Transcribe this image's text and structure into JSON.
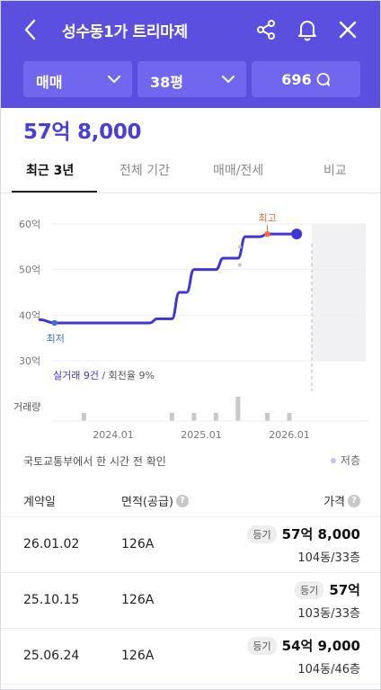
{
  "header": {
    "title": "성수동1가 트리마제",
    "filters": [
      {
        "label": "매매"
      },
      {
        "label": "38평"
      },
      {
        "label": "696"
      }
    ]
  },
  "price": "57억 8,000",
  "tabs": [
    "최근 3년",
    "전체 기간",
    "매매/전세",
    "비교"
  ],
  "chart": {
    "y_labels": [
      "60억",
      "50억",
      "40억",
      "30억"
    ],
    "x_labels": [
      "2024.01",
      "2025.01",
      "2026.01"
    ],
    "high_label": "최고",
    "low_label": "최저",
    "volume_label": "거래량",
    "stats_primary": "실거래 9건",
    "stats_secondary": " / 회전율 9%"
  },
  "chart_data": {
    "type": "line",
    "xlabel": "",
    "ylabel": "",
    "ylim": [
      30,
      60
    ],
    "unit": "억",
    "series": [
      {
        "values": [
          [
            "2023-03",
            39
          ],
          [
            "2023-05",
            38.3
          ],
          [
            "2024-01",
            38.3
          ],
          [
            "2024-06",
            38.3
          ],
          [
            "2024-07",
            39.2
          ],
          [
            "2024-09",
            39.2
          ],
          [
            "2024-10",
            45
          ],
          [
            "2024-11",
            45
          ],
          [
            "2024-12",
            50
          ],
          [
            "2025-03",
            50
          ],
          [
            "2025-04",
            52.5
          ],
          [
            "2025-06",
            52.5
          ],
          [
            "2025-07",
            57.2
          ],
          [
            "2025-09",
            57.2
          ],
          [
            "2025-10",
            57.8
          ],
          [
            "2026-02",
            57.8
          ]
        ]
      }
    ],
    "registry_points": [
      [
        "2025-06",
        55
      ],
      [
        "2025-06",
        51
      ]
    ],
    "high": {
      "date": "2025-10",
      "value": 57.8
    },
    "low": {
      "date": "2023-05",
      "value": 38.3
    },
    "volume": [
      {
        "date": "2023-09",
        "count": 1
      },
      {
        "date": "2024-09",
        "count": 1
      },
      {
        "date": "2024-12",
        "count": 1
      },
      {
        "date": "2025-03",
        "count": 1
      },
      {
        "date": "2025-06",
        "count": 3
      },
      {
        "date": "2025-10",
        "count": 1
      },
      {
        "date": "2026-01",
        "count": 1
      }
    ]
  },
  "source": {
    "text": "국토교통부에서 한 시간 전 확인",
    "legend": "저층"
  },
  "table": {
    "headers": {
      "date": "계약일",
      "area": "면적(공급)",
      "price": "가격"
    },
    "rows": [
      {
        "date": "26.01.02",
        "area": "126A",
        "badge": "등기",
        "price": "57억 8,000",
        "sub": "104동/33층"
      },
      {
        "date": "25.10.15",
        "area": "126A",
        "badge": "등기",
        "price": "57억",
        "sub": "103동/33층"
      },
      {
        "date": "25.06.24",
        "area": "126A",
        "badge": "등기",
        "price": "54억 9,000",
        "sub": "104동/46층"
      }
    ]
  },
  "colors": {
    "brand": "#5b4fe0",
    "line": "#4035d8",
    "high": "#f06a3a",
    "low": "#3a6fe0"
  }
}
